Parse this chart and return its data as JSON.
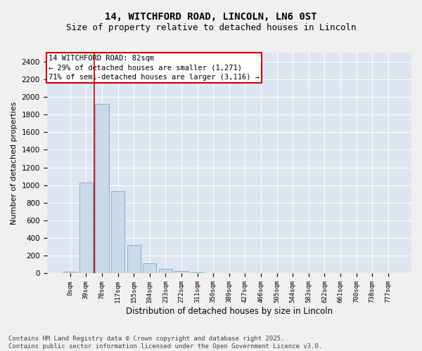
{
  "title_line1": "14, WITCHFORD ROAD, LINCOLN, LN6 0ST",
  "title_line2": "Size of property relative to detached houses in Lincoln",
  "xlabel": "Distribution of detached houses by size in Lincoln",
  "ylabel": "Number of detached properties",
  "bar_color": "#c9d9e8",
  "bar_edge_color": "#7aaac8",
  "plot_bg_color": "#dde6f0",
  "fig_bg_color": "#f0f0f0",
  "grid_color": "#ffffff",
  "annotation_box_color": "#cc0000",
  "vline_color": "#cc0000",
  "categories": [
    "0sqm",
    "39sqm",
    "78sqm",
    "117sqm",
    "155sqm",
    "194sqm",
    "233sqm",
    "272sqm",
    "311sqm",
    "350sqm",
    "389sqm",
    "427sqm",
    "466sqm",
    "505sqm",
    "544sqm",
    "583sqm",
    "622sqm",
    "661sqm",
    "700sqm",
    "738sqm",
    "777sqm"
  ],
  "values": [
    20,
    1030,
    1920,
    930,
    325,
    115,
    55,
    30,
    10,
    0,
    0,
    0,
    0,
    0,
    0,
    0,
    0,
    0,
    0,
    0,
    0
  ],
  "ylim": [
    0,
    2500
  ],
  "yticks": [
    0,
    200,
    400,
    600,
    800,
    1000,
    1200,
    1400,
    1600,
    1800,
    2000,
    2200,
    2400
  ],
  "vline_x_index": 2,
  "annotation_text": "14 WITCHFORD ROAD: 82sqm\n← 29% of detached houses are smaller (1,271)\n71% of semi-detached houses are larger (3,116) →",
  "footer_text": "Contains HM Land Registry data © Crown copyright and database right 2025.\nContains public sector information licensed under the Open Government Licence v3.0.",
  "title_fontsize": 10,
  "subtitle_fontsize": 9,
  "annotation_fontsize": 7.5,
  "footer_fontsize": 6.5,
  "ylabel_fontsize": 8,
  "xlabel_fontsize": 8.5
}
